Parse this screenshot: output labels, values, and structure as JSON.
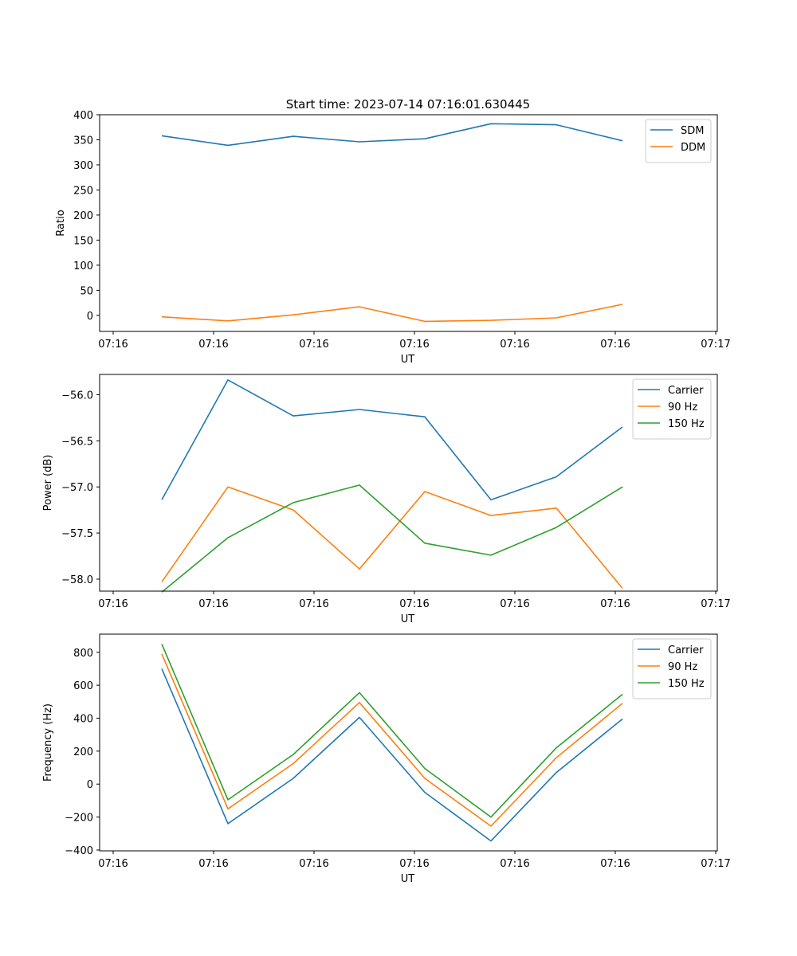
{
  "figure_title": "Start time: 2023-07-14 07:16:01.630445",
  "colors": {
    "blue": "#1f77b4",
    "orange": "#ff7f0e",
    "green": "#2ca02c"
  },
  "chart_data": [
    {
      "type": "line",
      "title": "Start time: 2023-07-14 07:16:01.630445",
      "xlabel": "UT",
      "ylabel": "Ratio",
      "x_tick_labels": [
        "07:16",
        "07:16",
        "07:16",
        "07:16",
        "07:16",
        "07:16",
        "07:17"
      ],
      "ylim": [
        -32,
        400
      ],
      "yticks": [
        0,
        50,
        100,
        150,
        200,
        250,
        300,
        350,
        400
      ],
      "legend_position": "top-right",
      "series": [
        {
          "name": "SDM",
          "color": "#1f77b4",
          "values": [
            358,
            339,
            357,
            346,
            352,
            382,
            380,
            348
          ]
        },
        {
          "name": "DDM",
          "color": "#ff7f0e",
          "values": [
            -3,
            -11,
            1,
            17,
            -12,
            -10,
            -5,
            22
          ]
        }
      ]
    },
    {
      "type": "line",
      "xlabel": "UT",
      "ylabel": "Power (dB)",
      "x_tick_labels": [
        "07:16",
        "07:16",
        "07:16",
        "07:16",
        "07:16",
        "07:16",
        "07:17"
      ],
      "ylim": [
        -58.13,
        -55.78
      ],
      "yticks": [
        -58.0,
        -57.5,
        -57.0,
        -56.5,
        -56.0
      ],
      "ytick_labels": [
        "−58.0",
        "−57.5",
        "−57.0",
        "−56.5",
        "−56.0"
      ],
      "legend_position": "top-right",
      "series": [
        {
          "name": "Carrier",
          "color": "#1f77b4",
          "values": [
            -57.14,
            -55.84,
            -56.23,
            -56.16,
            -56.24,
            -57.14,
            -56.89,
            -56.35
          ]
        },
        {
          "name": "90 Hz",
          "color": "#ff7f0e",
          "values": [
            -58.03,
            -57.0,
            -57.25,
            -57.89,
            -57.05,
            -57.31,
            -57.23,
            -58.1
          ]
        },
        {
          "name": "150 Hz",
          "color": "#2ca02c",
          "values": [
            -58.14,
            -57.55,
            -57.17,
            -56.98,
            -57.61,
            -57.74,
            -57.44,
            -57.0
          ]
        }
      ]
    },
    {
      "type": "line",
      "xlabel": "UT",
      "ylabel": "Frequency (Hz)",
      "x_tick_labels": [
        "07:16",
        "07:16",
        "07:16",
        "07:16",
        "07:16",
        "07:16",
        "07:17"
      ],
      "ylim": [
        -405,
        910
      ],
      "yticks": [
        -400,
        -200,
        0,
        200,
        400,
        600,
        800
      ],
      "ytick_labels": [
        "−400",
        "−200",
        "0",
        "200",
        "400",
        "600",
        "800"
      ],
      "legend_position": "top-right",
      "series": [
        {
          "name": "Carrier",
          "color": "#1f77b4",
          "values": [
            700,
            -240,
            35,
            405,
            -50,
            -345,
            70,
            395
          ]
        },
        {
          "name": "90 Hz",
          "color": "#ff7f0e",
          "values": [
            790,
            -150,
            125,
            495,
            35,
            -255,
            160,
            490
          ]
        },
        {
          "name": "150 Hz",
          "color": "#2ca02c",
          "values": [
            850,
            -95,
            180,
            555,
            95,
            -200,
            220,
            545
          ]
        }
      ]
    }
  ]
}
